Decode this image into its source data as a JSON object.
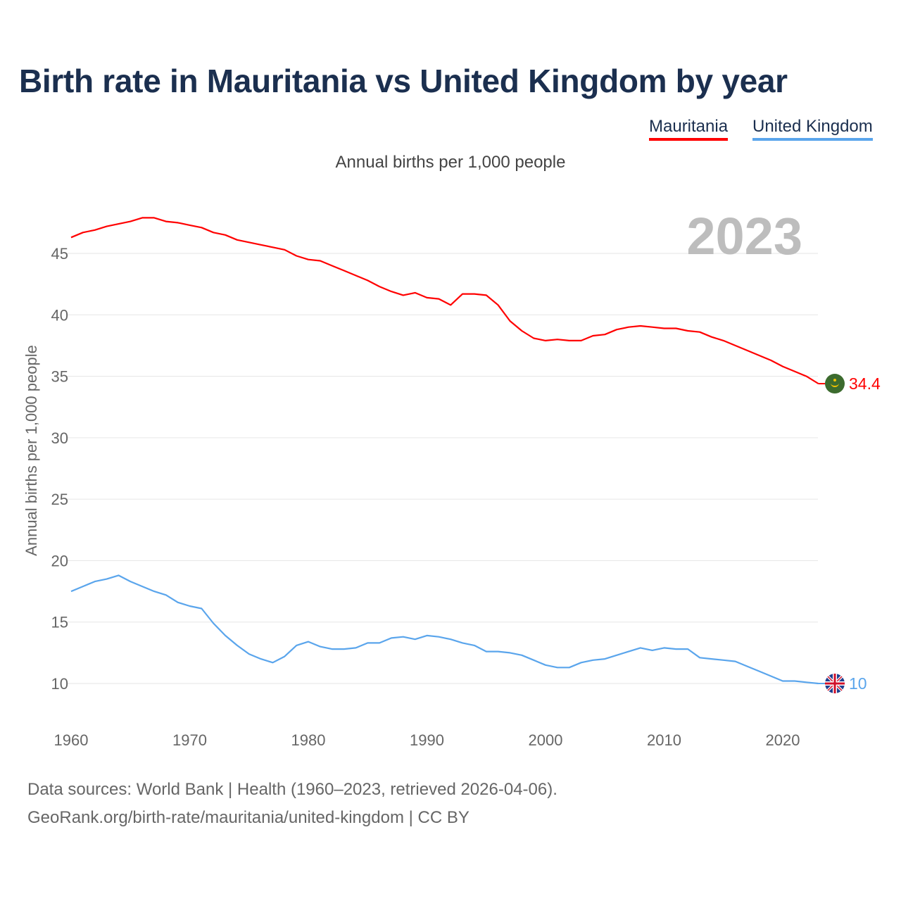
{
  "chart_data": {
    "type": "line",
    "title": "Birth rate in Mauritania vs United Kingdom by year",
    "subtitle": "Annual births per 1,000 people",
    "ylabel": "Annual births per 1,000 people",
    "xlabel": "",
    "xlim": [
      1960,
      2023
    ],
    "ylim": [
      7.5,
      48
    ],
    "yticks": [
      10,
      15,
      20,
      25,
      30,
      35,
      40,
      45
    ],
    "xticks": [
      1960,
      1970,
      1980,
      1990,
      2000,
      2010,
      2020
    ],
    "grid": true,
    "legend_position": "top-right",
    "year_label": "2023",
    "x": [
      1960,
      1961,
      1962,
      1963,
      1964,
      1965,
      1966,
      1967,
      1968,
      1969,
      1970,
      1971,
      1972,
      1973,
      1974,
      1975,
      1976,
      1977,
      1978,
      1979,
      1980,
      1981,
      1982,
      1983,
      1984,
      1985,
      1986,
      1987,
      1988,
      1989,
      1990,
      1991,
      1992,
      1993,
      1994,
      1995,
      1996,
      1997,
      1998,
      1999,
      2000,
      2001,
      2002,
      2003,
      2004,
      2005,
      2006,
      2007,
      2008,
      2009,
      2010,
      2011,
      2012,
      2013,
      2014,
      2015,
      2016,
      2017,
      2018,
      2019,
      2020,
      2021,
      2022,
      2023
    ],
    "series": [
      {
        "name": "Mauritania",
        "color": "#ff0000",
        "end_label": "34.4",
        "values": [
          46.3,
          46.7,
          46.9,
          47.2,
          47.4,
          47.6,
          47.9,
          47.9,
          47.6,
          47.5,
          47.3,
          47.1,
          46.7,
          46.5,
          46.1,
          45.9,
          45.7,
          45.5,
          45.3,
          44.8,
          44.5,
          44.4,
          44.0,
          43.6,
          43.2,
          42.8,
          42.3,
          41.9,
          41.6,
          41.8,
          41.4,
          41.3,
          40.8,
          41.7,
          41.7,
          41.6,
          40.8,
          39.5,
          38.7,
          38.1,
          37.9,
          38.0,
          37.9,
          37.9,
          38.3,
          38.4,
          38.8,
          39.0,
          39.1,
          39.0,
          38.9,
          38.9,
          38.7,
          38.6,
          38.2,
          37.9,
          37.5,
          37.1,
          36.7,
          36.3,
          35.8,
          35.4,
          35.0,
          34.4
        ]
      },
      {
        "name": "United Kingdom",
        "color": "#5aa5ec",
        "end_label": "10",
        "values": [
          17.5,
          17.9,
          18.3,
          18.5,
          18.8,
          18.3,
          17.9,
          17.5,
          17.2,
          16.6,
          16.3,
          16.1,
          14.9,
          13.9,
          13.1,
          12.4,
          12.0,
          11.7,
          12.2,
          13.1,
          13.4,
          13.0,
          12.8,
          12.8,
          12.9,
          13.3,
          13.3,
          13.7,
          13.8,
          13.6,
          13.9,
          13.8,
          13.6,
          13.3,
          13.1,
          12.6,
          12.6,
          12.5,
          12.3,
          11.9,
          11.5,
          11.3,
          11.3,
          11.7,
          11.9,
          12.0,
          12.3,
          12.6,
          12.9,
          12.7,
          12.9,
          12.8,
          12.8,
          12.1,
          12.0,
          11.9,
          11.8,
          11.4,
          11.0,
          10.6,
          10.2,
          10.2,
          10.1,
          10.0
        ]
      }
    ]
  },
  "footer": {
    "line1": "Data sources: World Bank | Health (1960–2023, retrieved 2026-04-06).",
    "line2": "GeoRank.org/birth-rate/mauritania/united-kingdom | CC BY"
  }
}
